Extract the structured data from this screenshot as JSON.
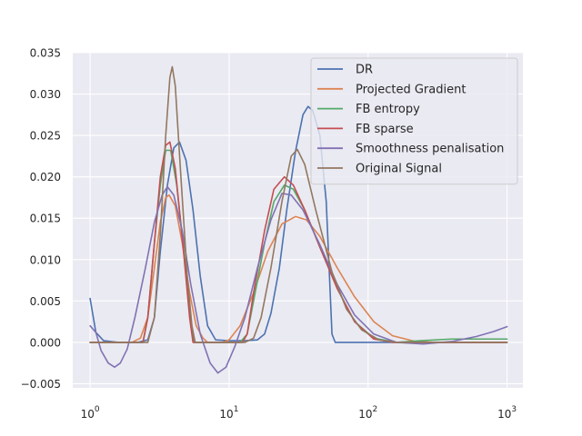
{
  "chart_data": {
    "type": "line",
    "title": "",
    "xlabel": "",
    "ylabel": "",
    "x_scale": "log",
    "xlim": [
      0.75,
      1300
    ],
    "ylim": [
      -0.0055,
      0.035
    ],
    "grid": true,
    "legend_position": "top-right",
    "x_ticks": [
      {
        "value": 1,
        "base": "10",
        "exp": "0"
      },
      {
        "value": 10,
        "base": "10",
        "exp": "1"
      },
      {
        "value": 100,
        "base": "10",
        "exp": "2"
      },
      {
        "value": 1000,
        "base": "10",
        "exp": "3"
      }
    ],
    "y_ticks": [
      {
        "value": -0.005,
        "label": "−0.005"
      },
      {
        "value": 0.0,
        "label": "0.000"
      },
      {
        "value": 0.005,
        "label": "0.005"
      },
      {
        "value": 0.01,
        "label": "0.010"
      },
      {
        "value": 0.015,
        "label": "0.015"
      },
      {
        "value": 0.02,
        "label": "0.020"
      },
      {
        "value": 0.025,
        "label": "0.025"
      },
      {
        "value": 0.03,
        "label": "0.030"
      },
      {
        "value": 0.035,
        "label": "0.035"
      }
    ],
    "series": [
      {
        "name": "DR",
        "color": "#4c72b0",
        "points": [
          [
            1.0,
            0.0053
          ],
          [
            1.1,
            0.0012
          ],
          [
            1.25,
            0.0002
          ],
          [
            1.6,
            0.0
          ],
          [
            2.2,
            0.0
          ],
          [
            2.6,
            0.0003
          ],
          [
            2.9,
            0.003
          ],
          [
            3.2,
            0.011
          ],
          [
            3.6,
            0.019
          ],
          [
            4.0,
            0.0235
          ],
          [
            4.4,
            0.0242
          ],
          [
            4.9,
            0.022
          ],
          [
            5.5,
            0.016
          ],
          [
            6.2,
            0.008
          ],
          [
            7.0,
            0.002
          ],
          [
            8.0,
            0.0003
          ],
          [
            10.0,
            0.0002
          ],
          [
            13.0,
            0.0002
          ],
          [
            16.0,
            0.0003
          ],
          [
            18.0,
            0.001
          ],
          [
            20.0,
            0.0035
          ],
          [
            23.0,
            0.009
          ],
          [
            26.0,
            0.016
          ],
          [
            30.0,
            0.023
          ],
          [
            34.0,
            0.0275
          ],
          [
            37.0,
            0.0285
          ],
          [
            40.0,
            0.028
          ],
          [
            45.0,
            0.025
          ],
          [
            50.0,
            0.017
          ],
          [
            55.0,
            0.001
          ],
          [
            58.0,
            0.0
          ],
          [
            100.0,
            0.0
          ],
          [
            1000.0,
            0.0
          ]
        ]
      },
      {
        "name": "Projected Gradient",
        "color": "#dd8452",
        "points": [
          [
            1.0,
            0.0
          ],
          [
            2.0,
            0.0
          ],
          [
            2.3,
            0.0005
          ],
          [
            2.6,
            0.003
          ],
          [
            2.9,
            0.009
          ],
          [
            3.2,
            0.0145
          ],
          [
            3.5,
            0.0175
          ],
          [
            3.7,
            0.0178
          ],
          [
            4.1,
            0.0165
          ],
          [
            4.6,
            0.012
          ],
          [
            5.2,
            0.006
          ],
          [
            5.8,
            0.002
          ],
          [
            6.5,
            0.0005
          ],
          [
            7.0,
            0.0
          ],
          [
            9.0,
            0.0
          ],
          [
            10.0,
            0.0003
          ],
          [
            12.0,
            0.002
          ],
          [
            15.0,
            0.006
          ],
          [
            19.0,
            0.011
          ],
          [
            24.0,
            0.0143
          ],
          [
            30.0,
            0.0152
          ],
          [
            36.0,
            0.0148
          ],
          [
            45.0,
            0.0128
          ],
          [
            60.0,
            0.009
          ],
          [
            80.0,
            0.0055
          ],
          [
            110.0,
            0.0025
          ],
          [
            150.0,
            0.0008
          ],
          [
            220.0,
            0.0001
          ],
          [
            300.0,
            0.0
          ],
          [
            1000.0,
            0.0
          ]
        ]
      },
      {
        "name": "FB entropy",
        "color": "#55a868",
        "points": [
          [
            1.0,
            0.0
          ],
          [
            2.4,
            0.0
          ],
          [
            2.6,
            0.003
          ],
          [
            2.9,
            0.012
          ],
          [
            3.2,
            0.019
          ],
          [
            3.5,
            0.0232
          ],
          [
            3.8,
            0.0232
          ],
          [
            4.2,
            0.019
          ],
          [
            4.8,
            0.01
          ],
          [
            5.3,
            0.002
          ],
          [
            5.6,
            0.0
          ],
          [
            12.0,
            0.0
          ],
          [
            13.5,
            0.001
          ],
          [
            15.0,
            0.005
          ],
          [
            18.0,
            0.012
          ],
          [
            21.0,
            0.017
          ],
          [
            25.0,
            0.019
          ],
          [
            29.0,
            0.0185
          ],
          [
            35.0,
            0.016
          ],
          [
            45.0,
            0.0115
          ],
          [
            60.0,
            0.0065
          ],
          [
            80.0,
            0.0025
          ],
          [
            110.0,
            0.0005
          ],
          [
            160.0,
            0.0
          ],
          [
            240.0,
            0.0002
          ],
          [
            400.0,
            0.0004
          ],
          [
            1000.0,
            0.0004
          ]
        ]
      },
      {
        "name": "FB sparse",
        "color": "#c44e52",
        "points": [
          [
            1.0,
            0.0
          ],
          [
            2.4,
            0.0
          ],
          [
            2.6,
            0.003
          ],
          [
            2.9,
            0.012
          ],
          [
            3.2,
            0.02
          ],
          [
            3.5,
            0.0238
          ],
          [
            3.75,
            0.0242
          ],
          [
            4.1,
            0.021
          ],
          [
            4.7,
            0.011
          ],
          [
            5.2,
            0.003
          ],
          [
            5.5,
            0.0
          ],
          [
            12.5,
            0.0
          ],
          [
            13.5,
            0.001
          ],
          [
            15.0,
            0.006
          ],
          [
            18.0,
            0.0135
          ],
          [
            21.0,
            0.0185
          ],
          [
            25.0,
            0.02
          ],
          [
            29.0,
            0.019
          ],
          [
            35.0,
            0.016
          ],
          [
            45.0,
            0.0115
          ],
          [
            60.0,
            0.0065
          ],
          [
            80.0,
            0.0025
          ],
          [
            110.0,
            0.0004
          ],
          [
            150.0,
            0.0
          ],
          [
            1000.0,
            0.0
          ]
        ]
      },
      {
        "name": "Smoothness penalisation",
        "color": "#8172b3",
        "points": [
          [
            1.0,
            0.002
          ],
          [
            1.1,
            0.0012
          ],
          [
            1.2,
            -0.001
          ],
          [
            1.35,
            -0.0025
          ],
          [
            1.5,
            -0.003
          ],
          [
            1.65,
            -0.0025
          ],
          [
            1.85,
            -0.0008
          ],
          [
            2.1,
            0.003
          ],
          [
            2.5,
            0.009
          ],
          [
            2.9,
            0.0145
          ],
          [
            3.3,
            0.0178
          ],
          [
            3.6,
            0.0188
          ],
          [
            4.0,
            0.0178
          ],
          [
            4.6,
            0.0135
          ],
          [
            5.3,
            0.007
          ],
          [
            6.2,
            0.001
          ],
          [
            7.3,
            -0.0025
          ],
          [
            8.3,
            -0.0037
          ],
          [
            9.5,
            -0.003
          ],
          [
            11.0,
            -0.0005
          ],
          [
            13.0,
            0.003
          ],
          [
            16.0,
            0.009
          ],
          [
            20.0,
            0.0148
          ],
          [
            24.0,
            0.018
          ],
          [
            28.0,
            0.0178
          ],
          [
            34.0,
            0.016
          ],
          [
            45.0,
            0.0118
          ],
          [
            60.0,
            0.007
          ],
          [
            80.0,
            0.0033
          ],
          [
            110.0,
            0.001
          ],
          [
            160.0,
            0.0
          ],
          [
            250.0,
            -0.0002
          ],
          [
            400.0,
            0.0001
          ],
          [
            600.0,
            0.0007
          ],
          [
            800.0,
            0.0013
          ],
          [
            1000.0,
            0.0019
          ]
        ]
      },
      {
        "name": "Original Signal",
        "color": "#937860",
        "points": [
          [
            1.0,
            0.0
          ],
          [
            2.6,
            0.0
          ],
          [
            2.9,
            0.003
          ],
          [
            3.2,
            0.013
          ],
          [
            3.5,
            0.025
          ],
          [
            3.75,
            0.032
          ],
          [
            3.9,
            0.0333
          ],
          [
            4.1,
            0.031
          ],
          [
            4.5,
            0.02
          ],
          [
            5.0,
            0.008
          ],
          [
            5.4,
            0.002
          ],
          [
            5.7,
            0.0
          ],
          [
            13.0,
            0.0
          ],
          [
            15.0,
            0.0005
          ],
          [
            17.0,
            0.003
          ],
          [
            20.0,
            0.009
          ],
          [
            24.0,
            0.017
          ],
          [
            28.0,
            0.0225
          ],
          [
            31.0,
            0.0233
          ],
          [
            35.0,
            0.0215
          ],
          [
            42.0,
            0.016
          ],
          [
            55.0,
            0.0085
          ],
          [
            70.0,
            0.004
          ],
          [
            90.0,
            0.0015
          ],
          [
            120.0,
            0.0003
          ],
          [
            160.0,
            0.0
          ],
          [
            1000.0,
            0.0
          ]
        ]
      }
    ]
  }
}
